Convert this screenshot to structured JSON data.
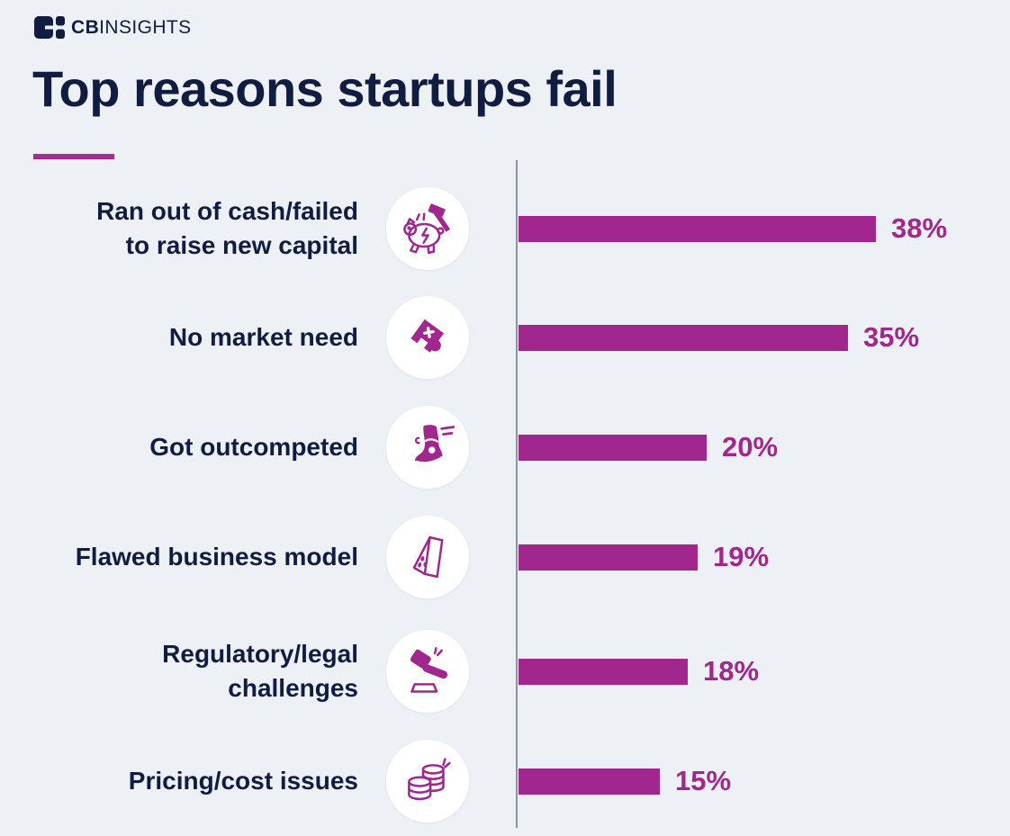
{
  "brand": {
    "logo_icon": "cb-insights-logo-icon",
    "name_bold": "CB",
    "name_light": "INSIGHTS"
  },
  "header": {
    "title": "Top reasons startups fail"
  },
  "colors": {
    "background": "#edf1f6",
    "navy_text": "#101d40",
    "magenta_accent": "#a1278e",
    "underline_accent": "#a82d92",
    "axis_gray": "#8e939b",
    "icon_circle_bg": "#ffffff"
  },
  "chart_data": {
    "type": "bar",
    "orientation": "horizontal",
    "title": "Top reasons startups fail",
    "xlabel": "",
    "ylabel": "",
    "unit": "%",
    "xlim": [
      0,
      40
    ],
    "grid": false,
    "legend": false,
    "value_labels_shown": true,
    "categories": [
      "Ran out of cash/failed to raise new capital",
      "No market need",
      "Got outcompeted",
      "Flawed business model",
      "Regulatory/legal challenges",
      "Pricing/cost issues"
    ],
    "values": [
      38,
      35,
      20,
      19,
      18,
      15
    ],
    "bars": [
      {
        "label": "Ran out of cash/failed to raise new capital",
        "label_lines": [
          "Ran out of cash/failed",
          "to raise new capital"
        ],
        "value": 38,
        "value_label": "38%",
        "icon": "piggy-bank-hammer-icon"
      },
      {
        "label": "No market need",
        "label_lines": [
          "No market need"
        ],
        "value": 35,
        "value_label": "35%",
        "icon": "puzzle-piece-icon"
      },
      {
        "label": "Got outcompeted",
        "label_lines": [
          "Got outcompeted"
        ],
        "value": 20,
        "value_label": "20%",
        "icon": "running-shoe-icon"
      },
      {
        "label": "Flawed business model",
        "label_lines": [
          "Flawed business model"
        ],
        "value": 19,
        "value_label": "19%",
        "icon": "folded-blueprint-icon"
      },
      {
        "label": "Regulatory/legal challenges",
        "label_lines": [
          "Regulatory/legal",
          "challenges"
        ],
        "value": 18,
        "value_label": "18%",
        "icon": "gavel-icon"
      },
      {
        "label": "Pricing/cost issues",
        "label_lines": [
          "Pricing/cost issues"
        ],
        "value": 15,
        "value_label": "15%",
        "icon": "coin-stacks-icon"
      }
    ]
  }
}
